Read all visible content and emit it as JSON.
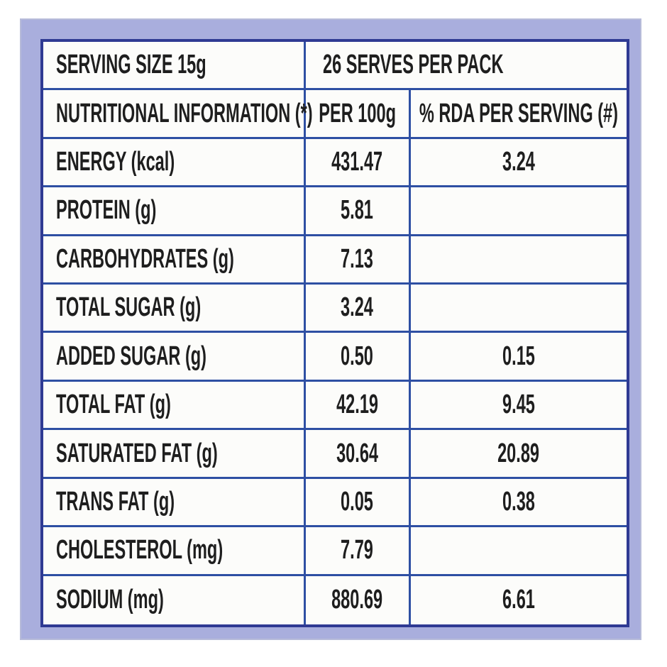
{
  "colors": {
    "frame": "#a9aedd",
    "table_border": "#2f3a93",
    "gridline": "#2e4fa3",
    "text": "#1e1e1e",
    "cell_background": "#fcfcfa"
  },
  "table": {
    "serving_size": "SERVING SIZE 15g",
    "serves_per_pack": "26 SERVES PER PACK",
    "header": {
      "col1": "NUTRITIONAL INFORMATION (*)",
      "col2": "PER 100g",
      "col3": "% RDA PER SERVING (#)"
    },
    "rows": [
      {
        "label": "ENERGY (kcal)",
        "per100g": "431.47",
        "rda": "3.24"
      },
      {
        "label": "PROTEIN (g)",
        "per100g": "5.81",
        "rda": ""
      },
      {
        "label": "CARBOHYDRATES (g)",
        "per100g": "7.13",
        "rda": ""
      },
      {
        "label": "TOTAL SUGAR (g)",
        "per100g": "3.24",
        "rda": ""
      },
      {
        "label": "ADDED SUGAR (g)",
        "per100g": "0.50",
        "rda": "0.15"
      },
      {
        "label": "TOTAL FAT (g)",
        "per100g": "42.19",
        "rda": "9.45"
      },
      {
        "label": "SATURATED FAT (g)",
        "per100g": "30.64",
        "rda": "20.89"
      },
      {
        "label": "TRANS FAT (g)",
        "per100g": "0.05",
        "rda": "0.38"
      },
      {
        "label": "CHOLESTEROL (mg)",
        "per100g": "7.79",
        "rda": ""
      },
      {
        "label": "SODIUM (mg)",
        "per100g": "880.69",
        "rda": "6.61"
      }
    ]
  }
}
